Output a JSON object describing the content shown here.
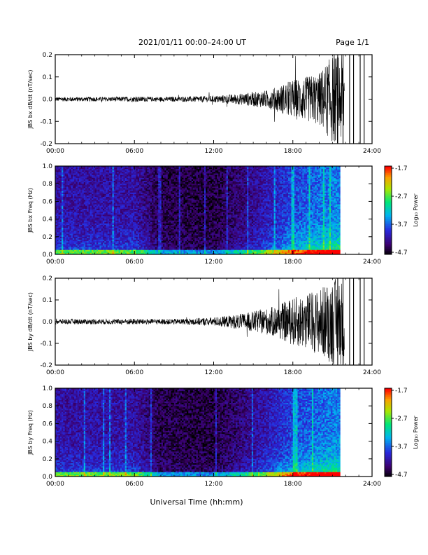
{
  "header": {
    "title": "2021/01/11  00:00–24:00 UT",
    "page": "Page 1/1"
  },
  "x_axis": {
    "ticks": [
      "00:00",
      "06:00",
      "12:00",
      "18:00",
      "24:00"
    ],
    "label": "Universal Time (hh:mm)"
  },
  "colorbar": {
    "label": "Log₁₀ Power",
    "ticks": [
      "-1.7",
      "-2.7",
      "-3.7",
      "-4.7"
    ]
  },
  "chart_data": [
    {
      "type": "line",
      "ylabel": "JBS bx dB/dt (nT/sec)",
      "ylim": [
        -0.2,
        0.2
      ],
      "yticks": [
        "0.2",
        "0.1",
        "0.0",
        "-0.1",
        "-0.2"
      ],
      "xlim_hours": [
        0,
        24
      ],
      "data_end_hour": 21.9,
      "envelope": {
        "hours": [
          0,
          2,
          4,
          6,
          8,
          10,
          12,
          14,
          16,
          17,
          18,
          19,
          20,
          21,
          21.9
        ],
        "amplitude": [
          0.01,
          0.01,
          0.01,
          0.012,
          0.01,
          0.012,
          0.015,
          0.025,
          0.04,
          0.06,
          0.09,
          0.1,
          0.12,
          0.2,
          0.2
        ]
      }
    },
    {
      "type": "heatmap",
      "ylabel": "JBS bx Freq (Hz)",
      "ylim": [
        0.0,
        1.0
      ],
      "yticks": [
        "1.0",
        "0.8",
        "0.6",
        "0.4",
        "0.2",
        "0.0"
      ],
      "color_range": [
        -4.7,
        -1.7
      ],
      "data_end_hour": 21.6
    },
    {
      "type": "line",
      "ylabel": "JBS by dB/dt (nT/sec)",
      "ylim": [
        -0.2,
        0.2
      ],
      "yticks": [
        "0.2",
        "0.1",
        "0.0",
        "-0.1",
        "-0.2"
      ],
      "xlim_hours": [
        0,
        24
      ],
      "data_end_hour": 21.9,
      "envelope": {
        "hours": [
          0,
          2,
          4,
          6,
          8,
          10,
          12,
          14,
          16,
          17,
          18,
          19,
          20,
          21,
          21.9
        ],
        "amplitude": [
          0.012,
          0.012,
          0.012,
          0.014,
          0.012,
          0.014,
          0.02,
          0.035,
          0.06,
          0.08,
          0.11,
          0.13,
          0.15,
          0.2,
          0.2
        ]
      }
    },
    {
      "type": "heatmap",
      "ylabel": "JBS by Freq (Hz)",
      "ylim": [
        0.0,
        1.0
      ],
      "yticks": [
        "1.0",
        "0.8",
        "0.6",
        "0.4",
        "0.2",
        "0.0"
      ],
      "color_range": [
        -4.7,
        -1.7
      ],
      "data_end_hour": 21.6
    }
  ]
}
